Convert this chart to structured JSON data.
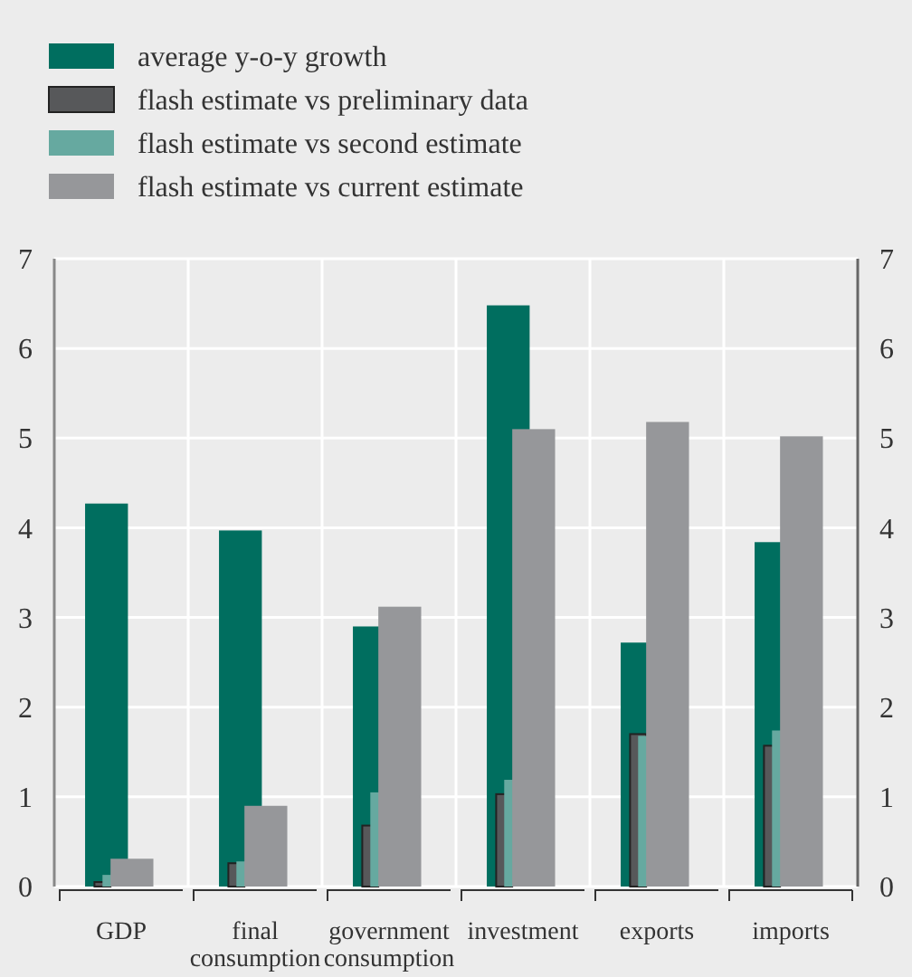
{
  "chart_data": {
    "type": "bar",
    "categories": [
      "GDP",
      "final\nconsumption",
      "government\nconsumption",
      "investment",
      "exports",
      "imports"
    ],
    "series": [
      {
        "name": "average y-o-y growth",
        "color": "#006e5f",
        "values": [
          4.27,
          3.97,
          2.9,
          6.48,
          2.72,
          3.84
        ]
      },
      {
        "name": "flash estimate vs preliminary data",
        "color": "#57585a",
        "values": [
          0.05,
          0.26,
          0.68,
          1.03,
          1.7,
          1.57
        ]
      },
      {
        "name": "flash estimate vs second estimate",
        "color": "#66a9a0",
        "values": [
          0.13,
          0.28,
          1.05,
          1.19,
          1.68,
          1.74
        ]
      },
      {
        "name": "flash estimate vs current estimate",
        "color": "#96979a",
        "values": [
          0.31,
          0.9,
          3.12,
          5.1,
          5.18,
          5.02
        ]
      }
    ],
    "ylim": [
      0,
      7
    ],
    "yticks": [
      0,
      1,
      2,
      3,
      4,
      5,
      6,
      7
    ],
    "y2lim": [
      0,
      7
    ],
    "y2ticks": [
      0,
      1,
      2,
      3,
      4,
      5,
      6,
      7
    ],
    "grid": true,
    "legend": "top left"
  }
}
